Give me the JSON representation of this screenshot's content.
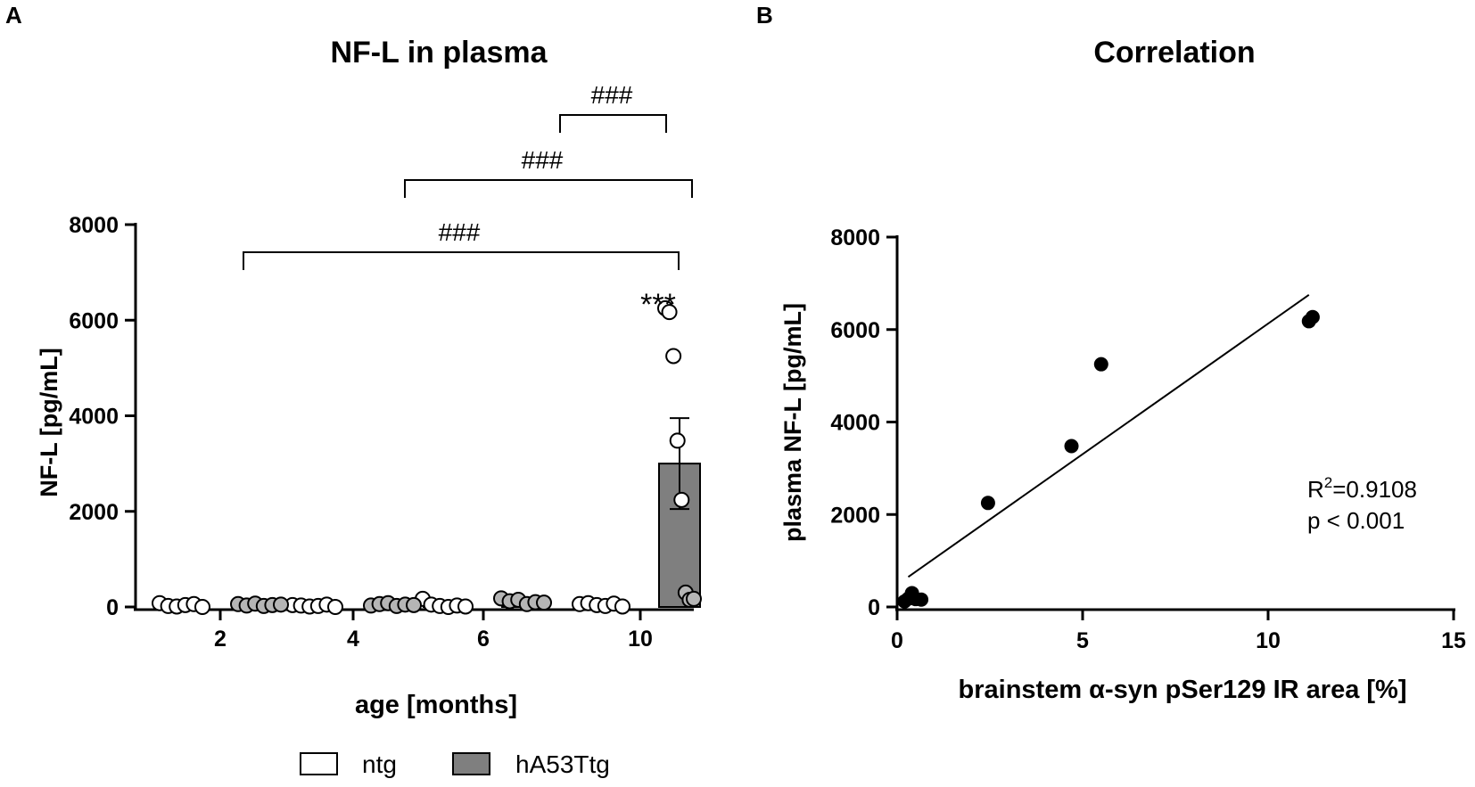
{
  "colors": {
    "ink": "#000000",
    "bar_tg": "#7f7f7f",
    "point_tg": "#b5b5b5",
    "point_ntg": "#ffffff",
    "background": "#ffffff"
  },
  "legend": {
    "ntg": "ntg",
    "tg": "hA53Ttg",
    "position": "bottom-center"
  },
  "chart_data": [
    {
      "panel_label": "A",
      "type": "bar",
      "title": "NF-L in plasma",
      "xlabel": "age [months]",
      "ylabel": "NF-L [pg/mL]",
      "ylim": [
        0,
        8000
      ],
      "yticks": [
        0,
        2000,
        4000,
        6000,
        8000
      ],
      "categories": [
        "2",
        "4",
        "6",
        "10"
      ],
      "series": [
        {
          "name": "ntg",
          "values": [
            40,
            30,
            60,
            50
          ],
          "points": [
            [
              80,
              20,
              10,
              40,
              60,
              0
            ],
            [
              40,
              30,
              10,
              20,
              50,
              0
            ],
            [
              170,
              50,
              20,
              0,
              30,
              10
            ],
            [
              60,
              80,
              40,
              20,
              70,
              10
            ]
          ]
        },
        {
          "name": "hA53Ttg",
          "values": [
            40,
            50,
            120,
            3000
          ],
          "error_top": 3950,
          "error_bottom": 2050,
          "points": [
            [
              60,
              30,
              70,
              20,
              40,
              50
            ],
            [
              30,
              60,
              80,
              20,
              50,
              40
            ],
            [
              180,
              120,
              150,
              60,
              100,
              90
            ],
            [
              6250,
              6170,
              5250,
              3480,
              2240,
              300,
              150,
              170
            ]
          ]
        }
      ],
      "annotations": [
        {
          "text": "***",
          "target": "10 hA53Ttg vs 10 ntg"
        },
        {
          "text": "###",
          "from": "2 hA53Ttg",
          "to": "10 hA53Ttg"
        },
        {
          "text": "###",
          "from": "4 hA53Ttg",
          "to": "10 hA53Ttg"
        },
        {
          "text": "###",
          "from": "6 hA53Ttg",
          "to": "10 hA53Ttg"
        }
      ]
    },
    {
      "panel_label": "B",
      "type": "scatter",
      "title": "Correlation",
      "xlabel": "brainstem α-syn pSer129 IR area [%]",
      "ylabel": "plasma NF-L [pg/mL]",
      "xlim": [
        0,
        15
      ],
      "ylim": [
        0,
        8000
      ],
      "xticks": [
        0,
        5,
        10,
        15
      ],
      "yticks": [
        0,
        2000,
        4000,
        6000,
        8000
      ],
      "x": [
        0.2,
        0.3,
        0.4,
        0.5,
        0.65,
        2.45,
        4.7,
        5.5,
        11.1,
        11.2
      ],
      "y": [
        120,
        180,
        300,
        170,
        160,
        2250,
        3480,
        5250,
        6180,
        6270
      ],
      "fit": {
        "x": [
          0.3,
          11.1
        ],
        "y": [
          650,
          6750
        ]
      },
      "stats": {
        "r2_prefix": "R",
        "r2_sup": "2",
        "r2_value": "=0.9108",
        "p": "p < 0.001"
      }
    }
  ]
}
